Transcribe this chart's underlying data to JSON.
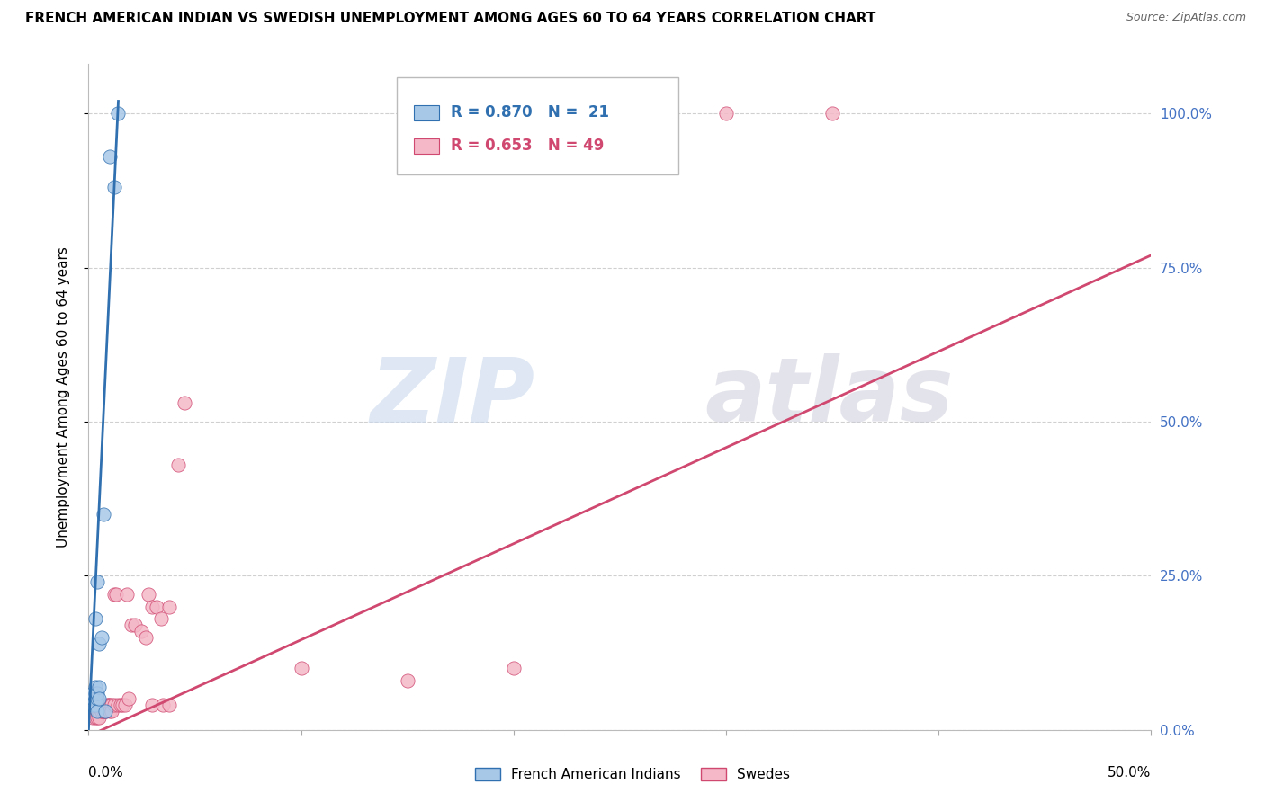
{
  "title": "FRENCH AMERICAN INDIAN VS SWEDISH UNEMPLOYMENT AMONG AGES 60 TO 64 YEARS CORRELATION CHART",
  "source": "Source: ZipAtlas.com",
  "ylabel": "Unemployment Among Ages 60 to 64 years",
  "ytick_labels": [
    "0.0%",
    "25.0%",
    "50.0%",
    "75.0%",
    "100.0%"
  ],
  "ytick_values": [
    0.0,
    0.25,
    0.5,
    0.75,
    1.0
  ],
  "xlim": [
    0.0,
    0.5
  ],
  "ylim": [
    0.0,
    1.08
  ],
  "legend_label_blue": "French American Indians",
  "legend_label_pink": "Swedes",
  "blue_color": "#a8c8e8",
  "pink_color": "#f4b8c8",
  "blue_line_color": "#3070b0",
  "pink_line_color": "#d04870",
  "blue_scatter": [
    [
      0.002,
      0.04
    ],
    [
      0.002,
      0.05
    ],
    [
      0.002,
      0.06
    ],
    [
      0.003,
      0.06
    ],
    [
      0.003,
      0.07
    ],
    [
      0.003,
      0.05
    ],
    [
      0.003,
      0.04
    ],
    [
      0.003,
      0.18
    ],
    [
      0.004,
      0.05
    ],
    [
      0.004,
      0.06
    ],
    [
      0.004,
      0.24
    ],
    [
      0.004,
      0.03
    ],
    [
      0.005,
      0.14
    ],
    [
      0.005,
      0.07
    ],
    [
      0.005,
      0.05
    ],
    [
      0.006,
      0.15
    ],
    [
      0.007,
      0.35
    ],
    [
      0.008,
      0.03
    ],
    [
      0.01,
      0.93
    ],
    [
      0.012,
      0.88
    ],
    [
      0.014,
      1.0
    ]
  ],
  "pink_scatter": [
    [
      0.002,
      0.02
    ],
    [
      0.003,
      0.03
    ],
    [
      0.003,
      0.03
    ],
    [
      0.003,
      0.02
    ],
    [
      0.004,
      0.03
    ],
    [
      0.004,
      0.02
    ],
    [
      0.005,
      0.03
    ],
    [
      0.005,
      0.02
    ],
    [
      0.005,
      0.04
    ],
    [
      0.006,
      0.03
    ],
    [
      0.006,
      0.03
    ],
    [
      0.007,
      0.04
    ],
    [
      0.007,
      0.03
    ],
    [
      0.008,
      0.03
    ],
    [
      0.008,
      0.03
    ],
    [
      0.009,
      0.04
    ],
    [
      0.009,
      0.04
    ],
    [
      0.01,
      0.04
    ],
    [
      0.01,
      0.03
    ],
    [
      0.011,
      0.04
    ],
    [
      0.011,
      0.03
    ],
    [
      0.012,
      0.04
    ],
    [
      0.012,
      0.22
    ],
    [
      0.013,
      0.22
    ],
    [
      0.014,
      0.04
    ],
    [
      0.015,
      0.04
    ],
    [
      0.016,
      0.04
    ],
    [
      0.017,
      0.04
    ],
    [
      0.018,
      0.22
    ],
    [
      0.019,
      0.05
    ],
    [
      0.02,
      0.17
    ],
    [
      0.022,
      0.17
    ],
    [
      0.025,
      0.16
    ],
    [
      0.027,
      0.15
    ],
    [
      0.028,
      0.22
    ],
    [
      0.03,
      0.2
    ],
    [
      0.03,
      0.04
    ],
    [
      0.032,
      0.2
    ],
    [
      0.034,
      0.18
    ],
    [
      0.035,
      0.04
    ],
    [
      0.038,
      0.04
    ],
    [
      0.038,
      0.2
    ],
    [
      0.042,
      0.43
    ],
    [
      0.045,
      0.53
    ],
    [
      0.1,
      0.1
    ],
    [
      0.15,
      0.08
    ],
    [
      0.2,
      0.1
    ],
    [
      0.3,
      1.0
    ],
    [
      0.35,
      1.0
    ]
  ],
  "blue_line_x": [
    0.0,
    0.014
  ],
  "blue_line_y": [
    0.0,
    1.02
  ],
  "pink_line_x": [
    0.0,
    0.5
  ],
  "pink_line_y": [
    -0.01,
    0.77
  ],
  "watermark_zip": "ZIP",
  "watermark_atlas": "atlas",
  "background_color": "#ffffff",
  "grid_color": "#d0d0d0",
  "right_yaxis_color": "#4472c4",
  "legend_r_blue": "R = 0.870",
  "legend_n_blue": "N =  21",
  "legend_r_pink": "R = 0.653",
  "legend_n_pink": "N = 49"
}
